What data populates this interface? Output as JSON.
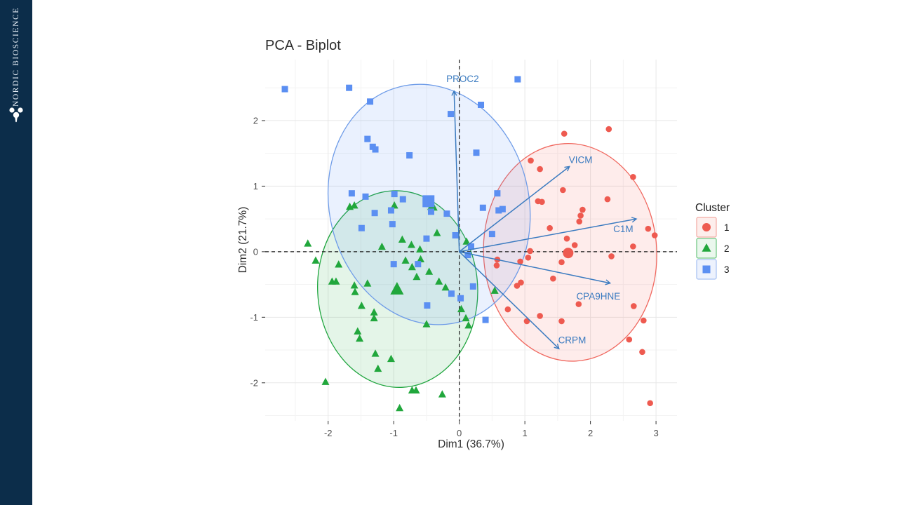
{
  "sidebar": {
    "brand": "NORDIC BIOSCIENCE",
    "bg_color": "#0c2d4a",
    "logo_icon": "molecule-icon"
  },
  "chart_data": {
    "type": "scatter",
    "title": "PCA - Biplot",
    "xlabel": "Dim1 (36.7%)",
    "ylabel": "Dim2 (21.7%)",
    "xlim": [
      -2.96,
      3.32
    ],
    "ylim": [
      -2.58,
      2.93
    ],
    "xticks": [
      -2,
      -1,
      0,
      1,
      2,
      3
    ],
    "yticks": [
      -2,
      -1,
      0,
      1,
      2
    ],
    "grid": {
      "major": true,
      "minor": true
    },
    "origin_lines": {
      "x": 0,
      "y": 0,
      "style": "dashed",
      "color": "#1a1a1a"
    },
    "legend": {
      "title": "Cluster",
      "position": "right",
      "entries": [
        {
          "label": "1",
          "marker": "circle",
          "color": "#ee5a50",
          "border": "#f09890",
          "bg": "#fdeeec"
        },
        {
          "label": "2",
          "marker": "triangle",
          "color": "#21a73c",
          "border": "#4cb964",
          "bg": "#eaf7ed"
        },
        {
          "label": "3",
          "marker": "square",
          "color": "#5b8ff2",
          "border": "#93b3ef",
          "bg": "#edf2fd"
        }
      ]
    },
    "series": [
      {
        "name": "1",
        "marker": "circle",
        "color": "#ee5a50",
        "centroid": [
          1.66,
          -0.02
        ],
        "ellipse": {
          "cx": 1.69,
          "cy": -0.01,
          "rx": 1.32,
          "ry": 1.66,
          "rot": -3,
          "stroke": "#f0685f",
          "fill": "rgba(248,110,100,0.13)"
        },
        "points": [
          [
            1.6,
            1.8
          ],
          [
            2.28,
            1.87
          ],
          [
            1.09,
            1.39
          ],
          [
            1.23,
            1.26
          ],
          [
            1.58,
            0.94
          ],
          [
            2.65,
            1.14
          ],
          [
            1.2,
            0.77
          ],
          [
            1.26,
            0.76
          ],
          [
            2.26,
            0.8
          ],
          [
            1.88,
            0.64
          ],
          [
            1.85,
            0.55
          ],
          [
            1.83,
            0.46
          ],
          [
            1.38,
            0.36
          ],
          [
            2.88,
            0.35
          ],
          [
            2.98,
            0.25
          ],
          [
            1.64,
            0.2
          ],
          [
            1.76,
            0.1
          ],
          [
            1.08,
            0.01
          ],
          [
            2.65,
            0.08
          ],
          [
            1.05,
            -0.09
          ],
          [
            0.58,
            -0.12
          ],
          [
            0.93,
            -0.15
          ],
          [
            1.56,
            -0.16
          ],
          [
            0.57,
            -0.21
          ],
          [
            2.32,
            -0.07
          ],
          [
            1.43,
            -0.41
          ],
          [
            0.94,
            -0.47
          ],
          [
            0.88,
            -0.52
          ],
          [
            1.82,
            -0.8
          ],
          [
            0.74,
            -0.88
          ],
          [
            1.23,
            -0.98
          ],
          [
            1.03,
            -1.06
          ],
          [
            1.56,
            -1.06
          ],
          [
            2.66,
            -0.83
          ],
          [
            2.81,
            -1.05
          ],
          [
            2.59,
            -1.34
          ],
          [
            2.79,
            -1.53
          ],
          [
            2.91,
            -2.31
          ]
        ]
      },
      {
        "name": "2",
        "marker": "triangle",
        "color": "#21a73c",
        "centroid": [
          -0.95,
          -0.58
        ],
        "ellipse": {
          "cx": -0.94,
          "cy": -0.57,
          "rx": 1.22,
          "ry": 1.5,
          "rot": -3,
          "stroke": "#1fa53e",
          "fill": "rgba(32,170,64,0.12)"
        },
        "points": [
          [
            -1.67,
            0.68
          ],
          [
            -1.6,
            0.7
          ],
          [
            -0.99,
            0.7
          ],
          [
            -0.43,
            0.68
          ],
          [
            -0.39,
            0.67
          ],
          [
            -2.31,
            0.12
          ],
          [
            -0.87,
            0.18
          ],
          [
            -1.18,
            0.07
          ],
          [
            -0.73,
            0.1
          ],
          [
            -0.6,
            0.03
          ],
          [
            -0.34,
            0.28
          ],
          [
            0.11,
            0.15
          ],
          [
            -2.19,
            -0.14
          ],
          [
            -1.84,
            -0.2
          ],
          [
            -0.82,
            -0.14
          ],
          [
            -0.59,
            -0.12
          ],
          [
            -1.94,
            -0.46
          ],
          [
            -1.88,
            -0.46
          ],
          [
            -1.6,
            -0.52
          ],
          [
            -1.4,
            -0.49
          ],
          [
            -1.59,
            -0.62
          ],
          [
            -0.72,
            -0.24
          ],
          [
            -0.65,
            -0.39
          ],
          [
            -0.46,
            -0.31
          ],
          [
            -0.31,
            -0.46
          ],
          [
            -0.21,
            -0.55
          ],
          [
            0.54,
            -0.6
          ],
          [
            -1.49,
            -0.83
          ],
          [
            -1.3,
            -0.93
          ],
          [
            -1.3,
            -1.02
          ],
          [
            -0.5,
            -1.11
          ],
          [
            0.03,
            -0.88
          ],
          [
            0.1,
            -1.02
          ],
          [
            0.14,
            -1.13
          ],
          [
            -1.55,
            -1.22
          ],
          [
            -1.52,
            -1.33
          ],
          [
            -1.28,
            -1.56
          ],
          [
            -1.04,
            -1.64
          ],
          [
            -1.24,
            -1.79
          ],
          [
            -2.04,
            -1.99
          ],
          [
            -0.72,
            -2.12
          ],
          [
            -0.66,
            -2.12
          ],
          [
            -0.26,
            -2.18
          ],
          [
            -0.91,
            -2.39
          ]
        ]
      },
      {
        "name": "3",
        "marker": "square",
        "color": "#5b8ff2",
        "centroid": [
          -0.47,
          0.77
        ],
        "ellipse": {
          "cx": -0.46,
          "cy": 0.72,
          "rx": 1.52,
          "ry": 1.85,
          "rot": -14,
          "stroke": "#6f9ce8",
          "fill": "rgba(95,150,245,0.13)"
        },
        "points": [
          [
            -2.66,
            2.48
          ],
          [
            -1.68,
            2.5
          ],
          [
            -1.36,
            2.29
          ],
          [
            -0.13,
            2.1
          ],
          [
            0.33,
            2.24
          ],
          [
            0.89,
            2.63
          ],
          [
            -1.4,
            1.72
          ],
          [
            -1.32,
            1.6
          ],
          [
            -1.28,
            1.56
          ],
          [
            -0.76,
            1.47
          ],
          [
            0.26,
            1.51
          ],
          [
            -1.64,
            0.89
          ],
          [
            -1.43,
            0.84
          ],
          [
            -0.99,
            0.88
          ],
          [
            -0.86,
            0.8
          ],
          [
            0.58,
            0.89
          ],
          [
            -1.29,
            0.59
          ],
          [
            -1.04,
            0.63
          ],
          [
            -0.43,
            0.61
          ],
          [
            -0.19,
            0.58
          ],
          [
            0.36,
            0.67
          ],
          [
            0.6,
            0.63
          ],
          [
            0.66,
            0.65
          ],
          [
            -1.49,
            0.36
          ],
          [
            -1.02,
            0.42
          ],
          [
            -0.5,
            0.2
          ],
          [
            -0.06,
            0.25
          ],
          [
            0.18,
            0.08
          ],
          [
            0.5,
            0.27
          ],
          [
            0.13,
            -0.05
          ],
          [
            -1.0,
            -0.19
          ],
          [
            -0.63,
            -0.19
          ],
          [
            0.21,
            -0.53
          ],
          [
            -0.12,
            -0.64
          ],
          [
            0.02,
            -0.71
          ],
          [
            -0.49,
            -0.82
          ],
          [
            0.4,
            -1.04
          ]
        ]
      }
    ],
    "loadings": {
      "color": "#3b7bc0",
      "arrows": [
        {
          "label": "PROC2",
          "x": -0.08,
          "y": 2.45,
          "lx": 0.05,
          "ly": 2.59
        },
        {
          "label": "VICM",
          "x": 1.68,
          "y": 1.3,
          "lx": 1.85,
          "ly": 1.35
        },
        {
          "label": "C1M",
          "x": 2.7,
          "y": 0.5,
          "lx": 2.5,
          "ly": 0.3
        },
        {
          "label": "CPA9HNE",
          "x": 2.3,
          "y": -0.48,
          "lx": 2.12,
          "ly": -0.73
        },
        {
          "label": "CRPM",
          "x": 1.52,
          "y": -1.48,
          "lx": 1.72,
          "ly": -1.4
        }
      ]
    }
  }
}
